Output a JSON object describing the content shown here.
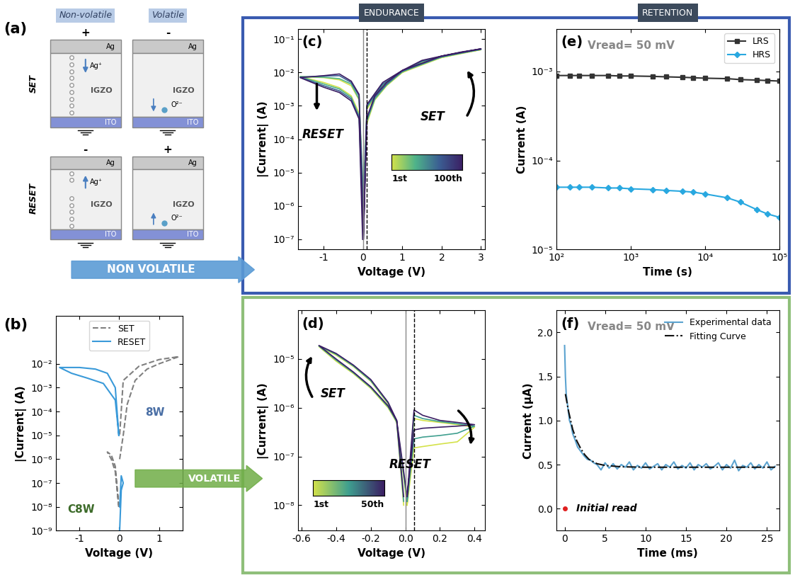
{
  "figure_texts": {
    "panel_a": "(a)",
    "header_endurance": "ENDURANCE",
    "header_retention": "RETENTION",
    "arrow_nonvolatile": "NON VOLATILE",
    "arrow_volatile": "VOLATILE"
  },
  "diagram": {
    "column_titles": [
      "Non-volatile",
      "Volatile"
    ],
    "row_labels": [
      "SET",
      "RESET"
    ],
    "electrode_top": "Ag",
    "layer": "IGZO",
    "electrode_bottom": "ITO",
    "ion_ag": "Ag⁺",
    "ion_o": "O²⁻",
    "polarity": [
      [
        "+",
        "-"
      ],
      [
        "-",
        "+"
      ]
    ]
  },
  "chart_data": [
    {
      "type": "line",
      "panel_label": "(b)",
      "xlabel": "Voltage (V)",
      "ylabel": "|Current| (A)",
      "log": "y",
      "xlim": [
        -1.6,
        1.6
      ],
      "ylim": [
        1e-09,
        1
      ],
      "xticks": [
        -1,
        0,
        1
      ],
      "yticks": [
        {
          "value": 1e-09,
          "label": "10⁻⁹"
        },
        {
          "value": 1e-08,
          "label": "10⁻⁸"
        },
        {
          "value": 1e-07,
          "label": "10⁻⁷"
        },
        {
          "value": 1e-06,
          "label": "10⁻⁶"
        },
        {
          "value": 1e-05,
          "label": "10⁻⁵"
        },
        {
          "value": 0.0001,
          "label": "10⁻⁴"
        },
        {
          "value": 0.001,
          "label": "10⁻³"
        },
        {
          "value": 0.01,
          "label": "10⁻²"
        }
      ],
      "legend": "upper center",
      "annotations": {
        "loop_nonvolatile": "8W",
        "loop_volatile": "C8W"
      },
      "series": [
        {
          "name": "SET",
          "color": "#808080",
          "line_style": "dashed",
          "x": [
            0.01,
            0.1,
            0.2,
            0.4,
            0.7,
            1.0,
            1.5,
            1.0,
            0.5,
            0.1,
            0.01,
            null,
            -0.01,
            -0.1,
            -0.2,
            -0.3,
            -0.2,
            -0.1,
            -0.01
          ],
          "values": [
            1e-06,
            1e-05,
            0.0002,
            0.002,
            0.006,
            0.01,
            0.02,
            0.015,
            0.008,
            0.002,
            1e-05,
            null,
            1e-08,
            3e-07,
            1e-06,
            2e-06,
            1.5e-06,
            5e-07,
            1e-08
          ]
        },
        {
          "name": "RESET",
          "color": "#3a9ad9",
          "line_style": "solid",
          "x": [
            -0.01,
            -0.1,
            -0.3,
            -0.6,
            -1.0,
            -1.5,
            -1.2,
            -0.8,
            -0.4,
            -0.1,
            -0.01,
            null,
            0.01,
            0.05,
            0.1,
            0.05,
            0.01
          ],
          "values": [
            1e-05,
            0.001,
            0.004,
            0.006,
            0.007,
            0.007,
            0.004,
            0.0025,
            0.0015,
            0.0003,
            1e-05,
            null,
            1e-08,
            2e-07,
            1e-07,
            5e-08,
            1e-09
          ]
        }
      ]
    },
    {
      "type": "line",
      "panel_label": "(c)",
      "xlabel": "Voltage (V)",
      "ylabel": "|Current| (A)",
      "log": "y",
      "xlim": [
        -1.65,
        3.1
      ],
      "ylim": [
        5e-08,
        0.2
      ],
      "xticks": [
        -1,
        0,
        1,
        2,
        3
      ],
      "yticks": [
        {
          "value": 1e-07,
          "label": "10⁻⁷"
        },
        {
          "value": 1e-06,
          "label": "10⁻⁶"
        },
        {
          "value": 1e-05,
          "label": "10⁻⁵"
        },
        {
          "value": 0.0001,
          "label": "10⁻⁴"
        },
        {
          "value": 0.001,
          "label": "10⁻³"
        },
        {
          "value": 0.01,
          "label": "10⁻²"
        },
        {
          "value": 0.1,
          "label": "10⁻¹"
        }
      ],
      "vline_solid": 0,
      "vline_dashed": 0.1,
      "annotations": {
        "set": "SET",
        "reset": "RESET"
      },
      "colorbar": {
        "colors": [
          "#d4e24a",
          "#4fb38a",
          "#3b5f93",
          "#3b1e63"
        ],
        "labels": [
          "1st",
          "100th"
        ]
      },
      "series": [
        {
          "color": "#d4e24a",
          "x": [
            0.01,
            0.1,
            0.3,
            0.6,
            1.0,
            1.5,
            2.0,
            2.5,
            3.0,
            2.0,
            1.0,
            0.5,
            0.1,
            0.01,
            -0.1,
            -0.3,
            -0.6,
            -1.0,
            -1.6,
            -1.0,
            -0.6,
            -0.3,
            -0.1,
            -0.01
          ],
          "values": [
            1e-06,
            0.0003,
            0.0015,
            0.004,
            0.01,
            0.02,
            0.028,
            0.038,
            0.048,
            0.028,
            0.01,
            0.004,
            0.0008,
            1e-06,
            0.0015,
            0.004,
            0.006,
            0.007,
            0.0075,
            0.005,
            0.0035,
            0.002,
            0.0006,
            1e-06
          ]
        },
        {
          "color": "#4fb38a",
          "x": [
            0.01,
            0.1,
            0.3,
            0.6,
            1.0,
            1.5,
            2.0,
            2.5,
            3.0,
            2.0,
            1.0,
            0.5,
            0.1,
            0.01,
            -0.1,
            -0.3,
            -0.6,
            -1.0,
            -1.6,
            -1.0,
            -0.6,
            -0.3,
            -0.1,
            -0.01
          ],
          "values": [
            2e-06,
            0.00035,
            0.0016,
            0.0042,
            0.0105,
            0.021,
            0.029,
            0.039,
            0.049,
            0.029,
            0.0105,
            0.0042,
            0.0009,
            2e-06,
            0.0016,
            0.0045,
            0.0065,
            0.0072,
            0.0075,
            0.0045,
            0.0032,
            0.0018,
            0.0005,
            2e-06
          ]
        },
        {
          "color": "#3b5f93",
          "x": [
            0.01,
            0.1,
            0.3,
            0.6,
            1.0,
            1.5,
            2.0,
            2.5,
            3.0,
            2.0,
            1.0,
            0.5,
            0.1,
            0.01,
            -0.1,
            -0.3,
            -0.6,
            -1.0,
            -1.6,
            -1.0,
            -0.6,
            -0.3,
            -0.1,
            -0.01
          ],
          "values": [
            5e-07,
            0.0004,
            0.0018,
            0.0045,
            0.011,
            0.022,
            0.03,
            0.04,
            0.05,
            0.03,
            0.011,
            0.0045,
            0.001,
            5e-07,
            0.002,
            0.005,
            0.008,
            0.0078,
            0.0072,
            0.004,
            0.0028,
            0.0016,
            0.00045,
            5e-07
          ]
        },
        {
          "color": "#3b1e63",
          "x": [
            0.01,
            0.1,
            0.3,
            0.6,
            1.0,
            1.5,
            2.0,
            2.5,
            3.0,
            2.0,
            1.0,
            0.5,
            0.1,
            0.01,
            -0.1,
            -0.3,
            -0.6,
            -1.0,
            -1.6,
            -1.0,
            -0.6,
            -0.3,
            -0.1,
            -0.01
          ],
          "values": [
            1e-07,
            0.00045,
            0.002,
            0.005,
            0.0115,
            0.023,
            0.031,
            0.041,
            0.051,
            0.031,
            0.0115,
            0.005,
            0.0011,
            1e-07,
            0.0022,
            0.0055,
            0.009,
            0.008,
            0.007,
            0.0036,
            0.0025,
            0.0014,
            0.0004,
            1e-07
          ]
        }
      ]
    },
    {
      "type": "line",
      "panel_label": "(d)",
      "xlabel": "Voltage (V)",
      "ylabel": "|Current| (A)",
      "log": "y",
      "xlim": [
        -0.62,
        0.46
      ],
      "ylim": [
        3e-09,
        0.0001
      ],
      "xticks": [
        -0.6,
        -0.4,
        -0.2,
        0.0,
        0.2,
        0.4
      ],
      "yticks": [
        {
          "value": 1e-08,
          "label": "10⁻⁸"
        },
        {
          "value": 1e-07,
          "label": "10⁻⁷"
        },
        {
          "value": 1e-06,
          "label": "10⁻⁶"
        },
        {
          "value": 1e-05,
          "label": "10⁻⁵"
        }
      ],
      "vline_solid": 0,
      "vline_dashed": 0.05,
      "annotations": {
        "set": "SET",
        "reset": "RESET"
      },
      "colorbar": {
        "colors": [
          "#d4e24a",
          "#3f9f8f",
          "#3b1e63"
        ],
        "labels": [
          "1st",
          "50th"
        ]
      },
      "series": [
        {
          "color": "#d4e24a",
          "x": [
            0.01,
            0.05,
            0.1,
            0.2,
            0.3,
            0.4,
            0.3,
            0.2,
            0.1,
            0.05,
            0.01,
            -0.05,
            -0.1,
            -0.2,
            -0.3,
            -0.4,
            -0.5,
            -0.4,
            -0.3,
            -0.2,
            -0.1,
            -0.05,
            -0.01
          ],
          "values": [
            1e-08,
            6e-07,
            5.5e-07,
            5e-07,
            4.5e-07,
            4e-07,
            2e-07,
            1.8e-07,
            1.6e-07,
            1.5e-07,
            1e-08,
            5e-07,
            1e-06,
            2.5e-06,
            5e-06,
            9e-06,
            1.8e-05,
            1.2e-05,
            7e-06,
            3.5e-06,
            1.2e-06,
            5e-07,
            1e-08
          ]
        },
        {
          "color": "#3f9f8f",
          "x": [
            0.01,
            0.05,
            0.1,
            0.2,
            0.3,
            0.4,
            0.3,
            0.2,
            0.1,
            0.05,
            0.01,
            -0.05,
            -0.1,
            -0.2,
            -0.3,
            -0.4,
            -0.5,
            -0.4,
            -0.3,
            -0.2,
            -0.1,
            -0.05,
            -0.01
          ],
          "values": [
            1.2e-08,
            7e-07,
            6e-07,
            5.2e-07,
            4.7e-07,
            4.2e-07,
            3e-07,
            2.7e-07,
            2.5e-07,
            2.3e-07,
            1.2e-08,
            5.2e-07,
            1.05e-06,
            2.6e-06,
            5.2e-06,
            9.5e-06,
            1.85e-05,
            1.25e-05,
            7.2e-06,
            3.6e-06,
            1.25e-06,
            5.2e-07,
            1.2e-08
          ]
        },
        {
          "color": "#3b1e63",
          "x": [
            0.01,
            0.05,
            0.1,
            0.2,
            0.3,
            0.4,
            0.3,
            0.2,
            0.1,
            0.05,
            0.01,
            -0.05,
            -0.1,
            -0.2,
            -0.3,
            -0.4,
            -0.5,
            -0.4,
            -0.3,
            -0.2,
            -0.1,
            -0.05,
            -0.01
          ],
          "values": [
            1.5e-08,
            9e-07,
            7e-07,
            5.5e-07,
            5e-07,
            4.5e-07,
            4.2e-07,
            4e-07,
            3.8e-07,
            3.5e-07,
            1.5e-08,
            5.5e-07,
            1.1e-06,
            2.7e-06,
            5.4e-06,
            1e-05,
            1.9e-05,
            1.3e-05,
            7.5e-06,
            3.8e-06,
            1.3e-06,
            5.5e-07,
            1.5e-08
          ]
        }
      ]
    },
    {
      "type": "line",
      "panel_label": "(e)",
      "xlabel": "Time (s)",
      "ylabel": "Current (A)",
      "log": true,
      "xlim": [
        100,
        100000
      ],
      "ylim": [
        1e-05,
        0.003
      ],
      "xticks": [
        {
          "value": 100,
          "label": "10²"
        },
        {
          "value": 1000,
          "label": "10³"
        },
        {
          "value": 10000,
          "label": "10⁴"
        },
        {
          "value": 100000,
          "label": "10⁵"
        }
      ],
      "yticks": [
        {
          "value": 1e-05,
          "label": "10⁻⁵"
        },
        {
          "value": 0.0001,
          "label": "10⁻⁴"
        },
        {
          "value": 0.001,
          "label": "10⁻³"
        }
      ],
      "vread_text": "Vread= 50 mV",
      "legend": "upper right",
      "series": [
        {
          "name": "LRS",
          "color": "#333333",
          "marker": "square",
          "line_style": "solid",
          "x": [
            100,
            150,
            200,
            300,
            500,
            700,
            1000,
            2000,
            3000,
            5000,
            7000,
            10000,
            20000,
            30000,
            50000,
            70000,
            100000
          ],
          "values": [
            0.0009,
            0.0009,
            0.0009,
            0.0009,
            0.0009,
            0.00089,
            0.00089,
            0.00088,
            0.00087,
            0.00086,
            0.00085,
            0.00084,
            0.00083,
            0.00081,
            0.0008,
            0.00079,
            0.00078
          ]
        },
        {
          "name": "HRS",
          "color": "#29a8e0",
          "marker": "diamond",
          "line_style": "solid",
          "x": [
            100,
            150,
            200,
            300,
            500,
            700,
            1000,
            2000,
            3000,
            5000,
            7000,
            10000,
            20000,
            30000,
            50000,
            70000,
            100000
          ],
          "values": [
            5e-05,
            5e-05,
            5e-05,
            5e-05,
            4.9e-05,
            4.9e-05,
            4.8e-05,
            4.7e-05,
            4.6e-05,
            4.5e-05,
            4.4e-05,
            4.2e-05,
            3.8e-05,
            3.4e-05,
            2.8e-05,
            2.5e-05,
            2.3e-05
          ]
        }
      ]
    },
    {
      "type": "line",
      "panel_label": "(f)",
      "xlabel": "Time (ms)",
      "ylabel": "Current (μA)",
      "xlim": [
        -1,
        26.5
      ],
      "ylim": [
        -0.25,
        2.25
      ],
      "xticks": [
        0,
        5,
        10,
        15,
        20,
        25
      ],
      "yticks": [
        {
          "value": 0,
          "label": "0.0"
        },
        0.5,
        {
          "value": 1,
          "label": "1.0"
        },
        1.5,
        {
          "value": 2,
          "label": "2.0"
        }
      ],
      "vread_text": "Vread= 50 mV",
      "legend": "upper right",
      "initial_read": {
        "x": 0,
        "value": 0,
        "label": "Initial read",
        "color": "#e02020"
      },
      "series": [
        {
          "name": "Experimental data",
          "color": "#5ba3d0",
          "line_style": "solid",
          "x": [
            0,
            0.1,
            0.2,
            0.4,
            0.6,
            0.8,
            1.0,
            1.3,
            1.6,
            2.0,
            2.4,
            2.8,
            3.2,
            3.6,
            4.0,
            4.5,
            5.0,
            5.5,
            6.0,
            6.5,
            7.0,
            7.5,
            8.0,
            8.5,
            9.0,
            9.5,
            10.0,
            10.5,
            11.0,
            11.5,
            12.0,
            12.5,
            13.0,
            13.5,
            14.0,
            14.5,
            15.0,
            15.5,
            16.0,
            16.5,
            17.0,
            17.5,
            18.0,
            18.5,
            19.0,
            19.5,
            20.0,
            20.5,
            21.0,
            21.5,
            22.0,
            22.5,
            23.0,
            23.5,
            24.0,
            24.5,
            25.0,
            25.5,
            26.0
          ],
          "values": [
            1.85,
            1.5,
            1.3,
            1.15,
            1.0,
            0.95,
            0.85,
            0.78,
            0.7,
            0.65,
            0.6,
            0.56,
            0.55,
            0.52,
            0.5,
            0.44,
            0.52,
            0.46,
            0.51,
            0.45,
            0.5,
            0.47,
            0.53,
            0.44,
            0.49,
            0.46,
            0.52,
            0.45,
            0.48,
            0.51,
            0.44,
            0.5,
            0.47,
            0.53,
            0.45,
            0.49,
            0.46,
            0.52,
            0.44,
            0.5,
            0.47,
            0.51,
            0.45,
            0.48,
            0.52,
            0.44,
            0.5,
            0.46,
            0.55,
            0.43,
            0.49,
            0.47,
            0.52,
            0.45,
            0.5,
            0.46,
            0.53,
            0.44,
            0.48
          ]
        },
        {
          "name": "Fitting Curve",
          "color": "#111111",
          "line_style": "dashdot",
          "x": [
            0.1,
            0.5,
            1,
            1.5,
            2,
            2.5,
            3,
            4,
            5,
            7,
            10,
            15,
            20,
            26
          ],
          "values": [
            1.3,
            1.1,
            0.9,
            0.77,
            0.68,
            0.61,
            0.56,
            0.51,
            0.49,
            0.475,
            0.47,
            0.47,
            0.47,
            0.47
          ]
        }
      ]
    }
  ]
}
